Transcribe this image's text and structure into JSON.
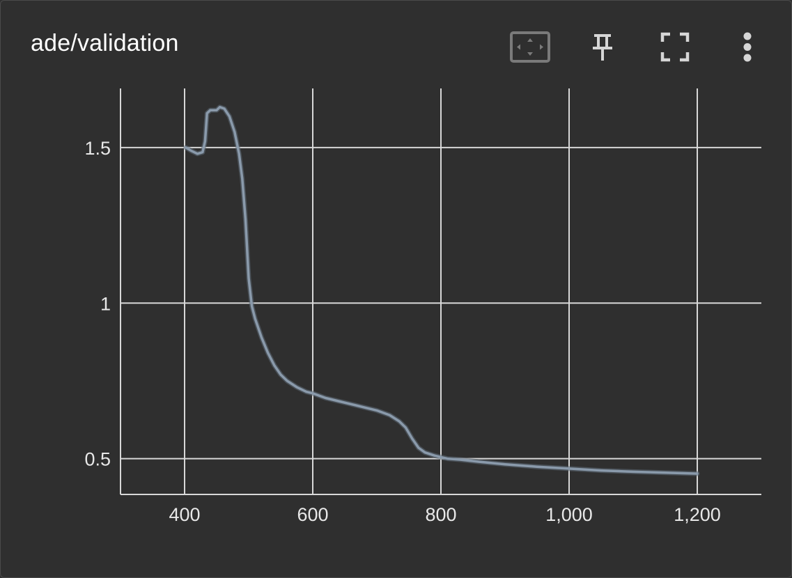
{
  "card": {
    "title": "ade/validation"
  },
  "toolbar": {
    "icons": [
      "fit-domain-icon",
      "pin-icon",
      "fullscreen-icon",
      "more-vert-icon"
    ]
  },
  "colors": {
    "background": "#2f2f2f",
    "grid": "#d8d8d8",
    "line": "#8a9aab",
    "text": "#ffffff"
  },
  "chart_data": {
    "type": "line",
    "title": "ade/validation",
    "xlabel": "",
    "ylabel": "",
    "xlim": [
      300,
      1300
    ],
    "ylim": [
      0.385,
      1.69
    ],
    "x_ticks": [
      400,
      600,
      800,
      1000,
      1200
    ],
    "x_tick_labels": [
      "400",
      "600",
      "800",
      "1,000",
      "1,200"
    ],
    "y_ticks": [
      0.5,
      1,
      1.5
    ],
    "y_tick_labels": [
      "0.5",
      "1",
      "1.5"
    ],
    "grid": true,
    "series": [
      {
        "name": "",
        "x": [
          402,
          410,
          420,
          428,
          432,
          435,
          440,
          450,
          455,
          462,
          470,
          478,
          485,
          490,
          495,
          500,
          505,
          510,
          520,
          530,
          540,
          550,
          560,
          575,
          590,
          600,
          620,
          640,
          660,
          680,
          700,
          720,
          735,
          745,
          755,
          765,
          775,
          790,
          810,
          830,
          860,
          900,
          950,
          1000,
          1050,
          1100,
          1150,
          1200
        ],
        "y": [
          1.5,
          1.49,
          1.48,
          1.485,
          1.52,
          1.61,
          1.62,
          1.62,
          1.63,
          1.625,
          1.6,
          1.55,
          1.48,
          1.4,
          1.27,
          1.08,
          0.99,
          0.95,
          0.89,
          0.84,
          0.8,
          0.77,
          0.75,
          0.73,
          0.715,
          0.71,
          0.695,
          0.685,
          0.675,
          0.665,
          0.655,
          0.64,
          0.62,
          0.6,
          0.565,
          0.535,
          0.52,
          0.51,
          0.5,
          0.497,
          0.49,
          0.482,
          0.474,
          0.468,
          0.462,
          0.458,
          0.455,
          0.452
        ]
      }
    ]
  }
}
